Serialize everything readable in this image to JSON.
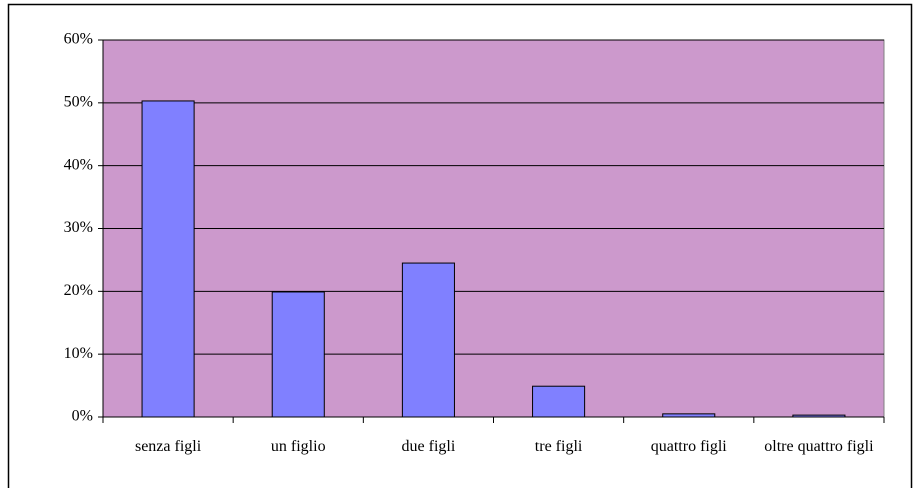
{
  "chart_data": {
    "type": "bar",
    "categories": [
      "senza figli",
      "un figlio",
      "due figli",
      "tre figli",
      "quattro figli",
      "oltre quattro figli"
    ],
    "values": [
      50.3,
      19.9,
      24.5,
      4.9,
      0.5,
      0.3
    ],
    "color": "#8080ff",
    "plot_background": "#cc99cc",
    "ylim": [
      0,
      60
    ],
    "yticks": [
      {
        "value": 0,
        "label": "0%"
      },
      {
        "value": 10,
        "label": "10%"
      },
      {
        "value": 20,
        "label": "20%"
      },
      {
        "value": 30,
        "label": "30%"
      },
      {
        "value": 40,
        "label": "40%"
      },
      {
        "value": 50,
        "label": "50%"
      },
      {
        "value": 60,
        "label": "60%"
      }
    ],
    "grid": true
  }
}
